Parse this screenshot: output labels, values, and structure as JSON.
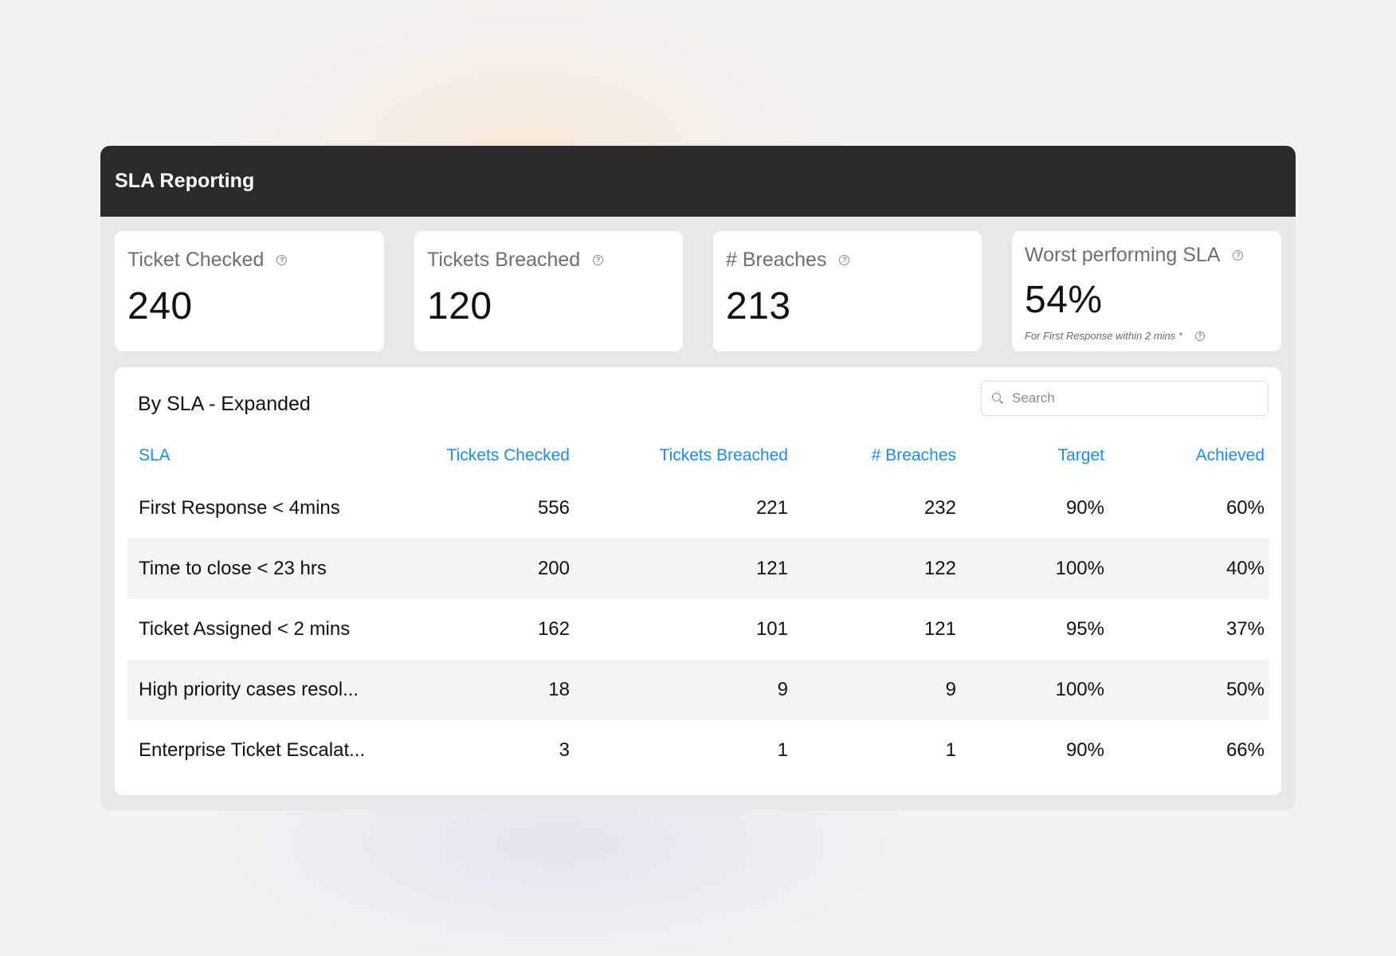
{
  "window": {
    "title": "SLA Reporting"
  },
  "cards": [
    {
      "label": "Ticket Checked",
      "value": "240"
    },
    {
      "label": "Tickets Breached",
      "value": "120"
    },
    {
      "label": "# Breaches",
      "value": "213"
    },
    {
      "label": "Worst performing SLA",
      "value": "54%",
      "note": "For First Response within 2 mins *"
    }
  ],
  "table_panel": {
    "title": "By SLA - Expanded",
    "search": {
      "placeholder": "Search",
      "value": ""
    },
    "columns": [
      "SLA",
      "Tickets Checked",
      "Tickets Breached",
      "# Breaches",
      "Target",
      "Achieved"
    ],
    "rows": [
      [
        "First Response < 4mins",
        "556",
        "221",
        "232",
        "90%",
        "60%"
      ],
      [
        "Time to close < 23 hrs",
        "200",
        "121",
        "122",
        "100%",
        "40%"
      ],
      [
        "Ticket Assigned < 2 mins",
        "162",
        "101",
        "121",
        "95%",
        "37%"
      ],
      [
        "High priority cases resol...",
        "18",
        "9",
        "9",
        "100%",
        "50%"
      ],
      [
        "Enterprise Ticket Escalat...",
        "3",
        "1",
        "1",
        "90%",
        "66%"
      ]
    ]
  },
  "colors": {
    "accent": "#1a8cf0",
    "titlebar": "#2b2a28"
  },
  "icons": {
    "help": "help-circle-icon",
    "search": "search-icon"
  }
}
